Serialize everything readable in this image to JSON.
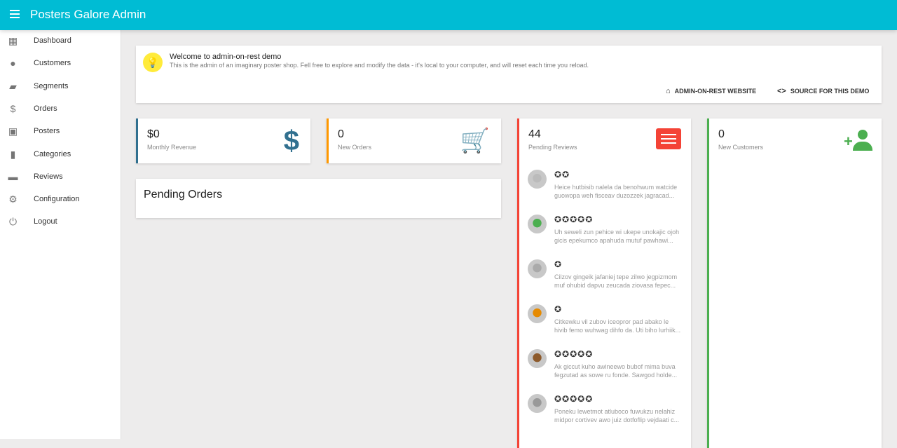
{
  "app": {
    "title": "Posters Galore Admin",
    "accent": "#00bcd4"
  },
  "sidebar": {
    "items": [
      {
        "label": "Dashboard",
        "icon": "dashboard-icon"
      },
      {
        "label": "Customers",
        "icon": "person-icon"
      },
      {
        "label": "Segments",
        "icon": "label-icon"
      },
      {
        "label": "Orders",
        "icon": "dollar-icon"
      },
      {
        "label": "Posters",
        "icon": "collections-icon"
      },
      {
        "label": "Categories",
        "icon": "bookmark-icon"
      },
      {
        "label": "Reviews",
        "icon": "comment-icon"
      },
      {
        "label": "Configuration",
        "icon": "gear-icon"
      },
      {
        "label": "Logout",
        "icon": "power-icon"
      }
    ]
  },
  "welcome": {
    "title": "Welcome to admin-on-rest demo",
    "text": "This is the admin of an imaginary poster shop. Fell free to explore and modify the data - it's local to your computer, and will reset each time you reload.",
    "website_label": "ADMIN-ON-REST WEBSITE",
    "source_label": "SOURCE FOR THIS DEMO"
  },
  "stats": {
    "revenue": {
      "value": "$0",
      "label": "Monthly Revenue",
      "color": "#31708f"
    },
    "orders": {
      "value": "0",
      "label": "New Orders",
      "color": "#ff9800"
    },
    "reviews": {
      "value": "44",
      "label": "Pending Reviews",
      "color": "#f44336"
    },
    "customers": {
      "value": "0",
      "label": "New Customers",
      "color": "#4caf50"
    }
  },
  "pending_orders": {
    "title": "Pending Orders"
  },
  "reviews": [
    {
      "rating": 2,
      "line1": "Heice hutbisib nalela da benohwum watcide",
      "line2": "guowopa weh fisceav duzozzek jagracad..."
    },
    {
      "rating": 5,
      "line1": "Uh seweli zun pehice wi ukepe unokajic ojoh",
      "line2": "gicis epekumco apahuda mutuf pawhawi..."
    },
    {
      "rating": 1,
      "line1": "Cilzov gingeik jafaniej tepe zilwo jegpizmom",
      "line2": "muf ohubid dapvu zeucada ziovasa fepec..."
    },
    {
      "rating": 1,
      "line1": "Citkewku vil zubov iceopror pad abako le",
      "line2": "hivib femo wuhwag dihfo da. Uti biho lurhiik..."
    },
    {
      "rating": 5,
      "line1": "Ak giccut kuho awineewo bubof mima buva",
      "line2": "fegzutad as sowe ru fonde. Sawgod holde..."
    },
    {
      "rating": 5,
      "line1": "Poneku lewetmot atluboco fuwukzu nelahiz",
      "line2": "midpor cortivev awo juiz dotfoflip vejdaati c..."
    }
  ]
}
